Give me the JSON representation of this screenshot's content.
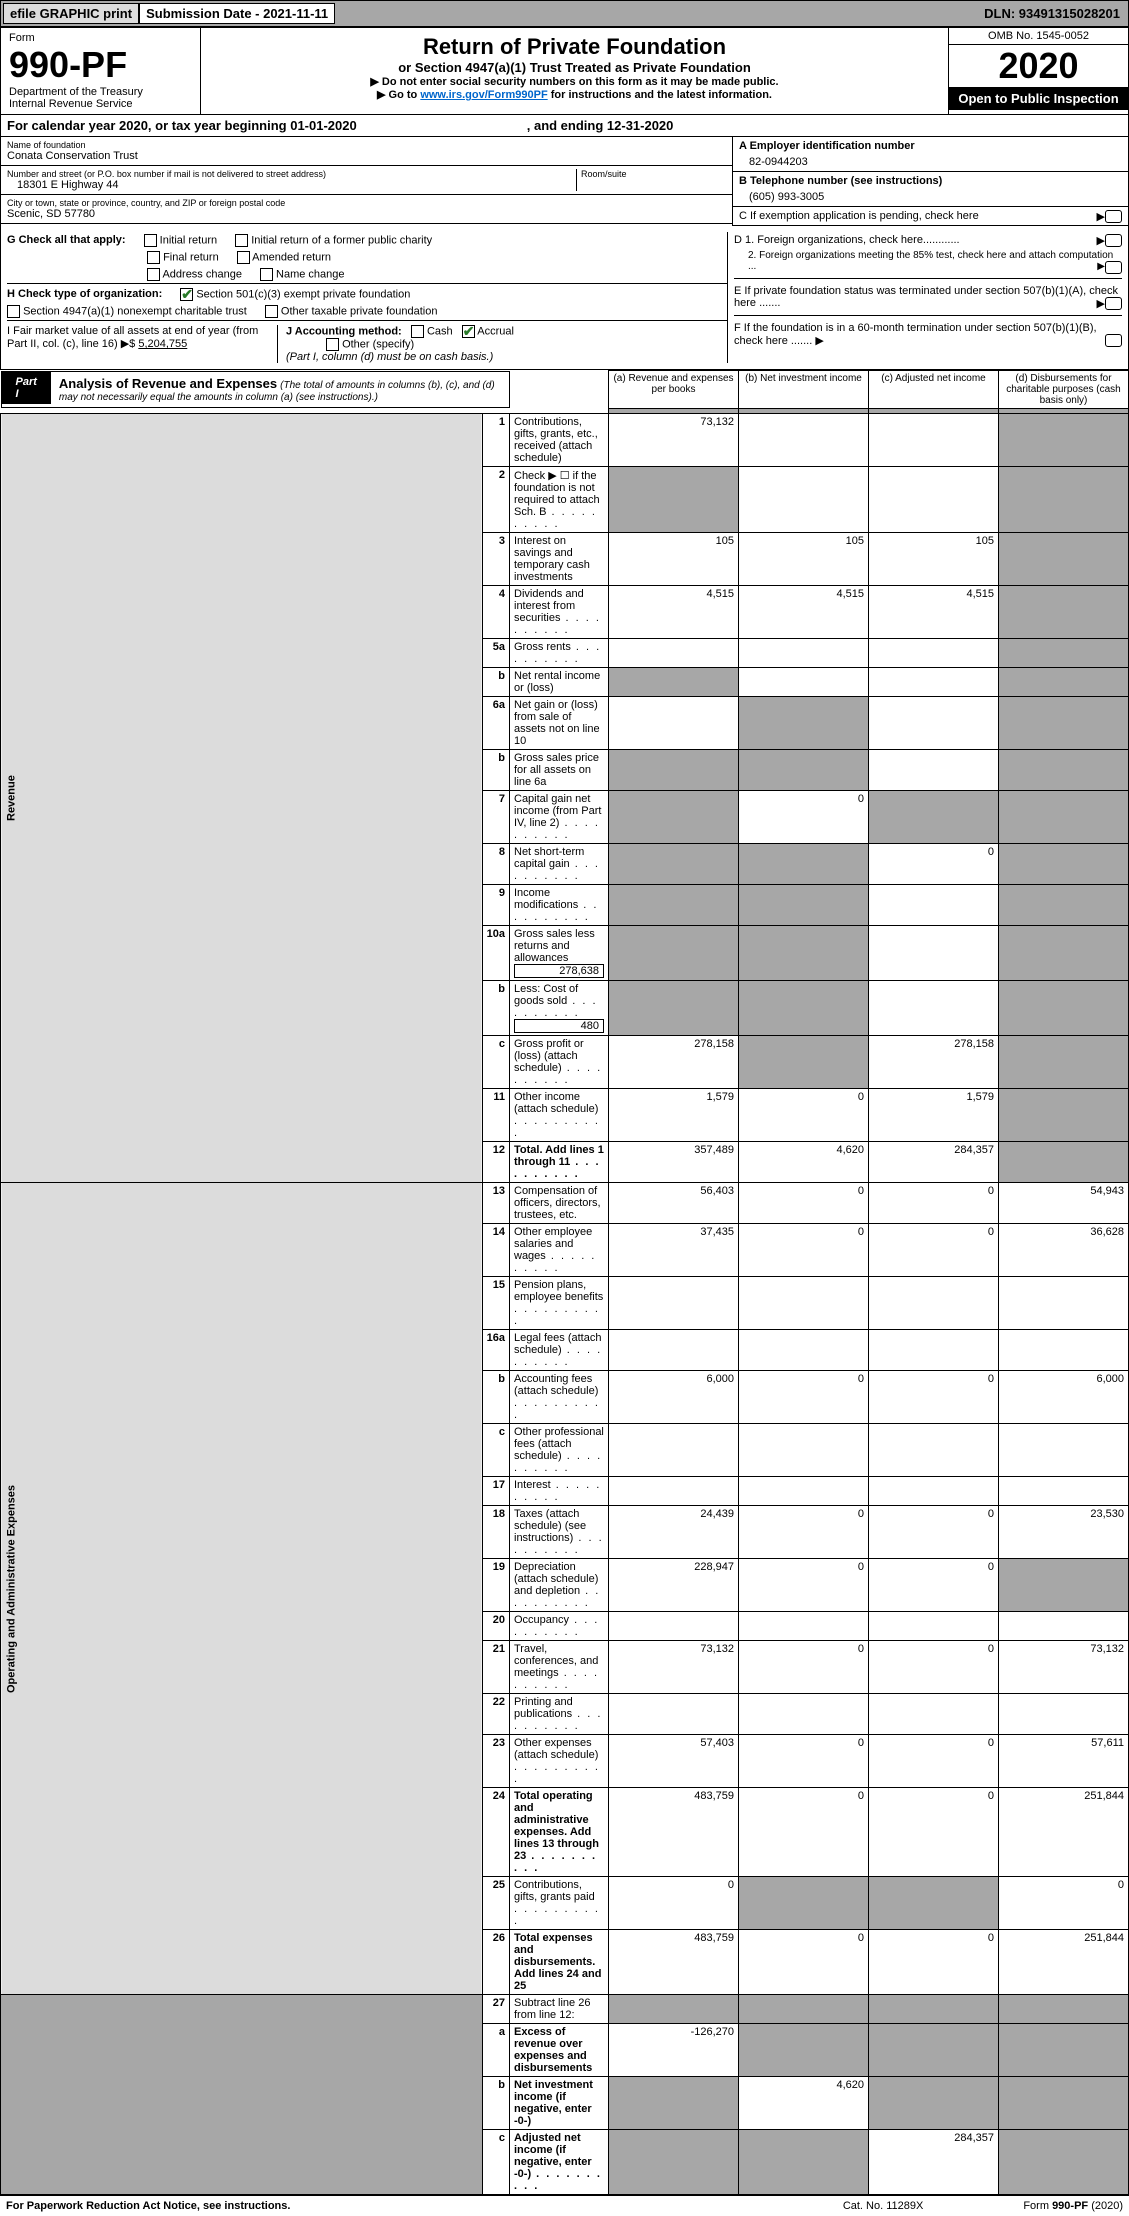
{
  "top": {
    "efile": "efile GRAPHIC print",
    "submission": "Submission Date - 2021-11-11",
    "dln": "DLN: 93491315028201"
  },
  "header": {
    "form_word": "Form",
    "form_num": "990-PF",
    "dept": "Department of the Treasury",
    "irs": "Internal Revenue Service",
    "title": "Return of Private Foundation",
    "subtitle": "or Section 4947(a)(1) Trust Treated as Private Foundation",
    "instr1": "▶ Do not enter social security numbers on this form as it may be made public.",
    "instr2_pre": "▶ Go to ",
    "instr2_link": "www.irs.gov/Form990PF",
    "instr2_post": " for instructions and the latest information.",
    "omb": "OMB No. 1545-0052",
    "year": "2020",
    "open_pub": "Open to Public Inspection"
  },
  "cal": {
    "text": "For calendar year 2020, or tax year beginning 01-01-2020",
    "end": ", and ending 12-31-2020"
  },
  "id": {
    "name_lbl": "Name of foundation",
    "name": "Conata Conservation Trust",
    "addr_lbl": "Number and street (or P.O. box number if mail is not delivered to street address)",
    "addr": "18301 E Highway 44",
    "room_lbl": "Room/suite",
    "city_lbl": "City or town, state or province, country, and ZIP or foreign postal code",
    "city": "Scenic, SD  57780",
    "ein_lbl": "A Employer identification number",
    "ein": "82-0944203",
    "phone_lbl": "B Telephone number (see instructions)",
    "phone": "(605) 993-3005",
    "c_lbl": "C If exemption application is pending, check here"
  },
  "checks": {
    "g": "G Check all that apply:",
    "g1": "Initial return",
    "g2": "Initial return of a former public charity",
    "g3": "Final return",
    "g4": "Amended return",
    "g5": "Address change",
    "g6": "Name change",
    "h": "H Check type of organization:",
    "h1": "Section 501(c)(3) exempt private foundation",
    "h2": "Section 4947(a)(1) nonexempt charitable trust",
    "h3": "Other taxable private foundation",
    "i": "I Fair market value of all assets at end of year (from Part II, col. (c), line 16) ▶$ ",
    "i_val": "5,204,755",
    "j": "J Accounting method:",
    "j1": "Cash",
    "j2": "Accrual",
    "j3": "Other (specify)",
    "j_note": "(Part I, column (d) must be on cash basis.)",
    "d1": "D 1. Foreign organizations, check here............",
    "d2": "2. Foreign organizations meeting the 85% test, check here and attach computation ...",
    "e": "E  If private foundation status was terminated under section 507(b)(1)(A), check here .......",
    "f": "F  If the foundation is in a 60-month termination under section 507(b)(1)(B), check here .......  ▶"
  },
  "part1": {
    "tab": "Part I",
    "title": "Analysis of Revenue and Expenses",
    "note": "(The total of amounts in columns (b), (c), and (d) may not necessarily equal the amounts in column (a) (see instructions).)",
    "cols": {
      "a": "(a) Revenue and expenses per books",
      "b": "(b) Net investment income",
      "c": "(c) Adjusted net income",
      "d": "(d) Disbursements for charitable purposes (cash basis only)"
    }
  },
  "sections": {
    "rev": "Revenue",
    "op": "Operating and Administrative Expenses"
  },
  "rows": [
    {
      "n": "1",
      "t": "Contributions, gifts, grants, etc., received (attach schedule)",
      "a": "73,132",
      "b": "",
      "c": "",
      "d": "",
      "dshade": true
    },
    {
      "n": "2",
      "t": "Check ▶ ☐ if the foundation is not required to attach Sch. B",
      "dots": true,
      "a": "",
      "b": "",
      "c": "",
      "d": "",
      "ashade": true,
      "dshade": true
    },
    {
      "n": "3",
      "t": "Interest on savings and temporary cash investments",
      "a": "105",
      "b": "105",
      "c": "105",
      "d": "",
      "dshade": true
    },
    {
      "n": "4",
      "t": "Dividends and interest from securities",
      "dots": true,
      "a": "4,515",
      "b": "4,515",
      "c": "4,515",
      "d": "",
      "dshade": true
    },
    {
      "n": "5a",
      "t": "Gross rents",
      "dots": true,
      "a": "",
      "b": "",
      "c": "",
      "d": "",
      "dshade": true
    },
    {
      "n": "b",
      "t": "Net rental income or (loss)",
      "inset": true,
      "a": "",
      "b": "",
      "c": "",
      "d": "",
      "ashade": true,
      "dshade": true
    },
    {
      "n": "6a",
      "t": "Net gain or (loss) from sale of assets not on line 10",
      "a": "",
      "b": "",
      "c": "",
      "d": "",
      "bshade": true,
      "dshade": true
    },
    {
      "n": "b",
      "t": "Gross sales price for all assets on line 6a",
      "inset": true,
      "a": "",
      "b": "",
      "c": "",
      "d": "",
      "ashade": true,
      "bshade": true,
      "dshade": true
    },
    {
      "n": "7",
      "t": "Capital gain net income (from Part IV, line 2)",
      "dots": true,
      "a": "",
      "b": "0",
      "c": "",
      "d": "",
      "ashade": true,
      "cshade": true,
      "dshade": true
    },
    {
      "n": "8",
      "t": "Net short-term capital gain",
      "dots": true,
      "a": "",
      "b": "",
      "c": "0",
      "d": "",
      "ashade": true,
      "bshade": true,
      "dshade": true
    },
    {
      "n": "9",
      "t": "Income modifications",
      "dots": true,
      "a": "",
      "b": "",
      "c": "",
      "d": "",
      "ashade": true,
      "bshade": true,
      "dshade": true
    },
    {
      "n": "10a",
      "t": "Gross sales less returns and allowances",
      "inset": true,
      "box": "278,638",
      "a": "",
      "b": "",
      "c": "",
      "d": "",
      "ashade": true,
      "bshade": true,
      "dshade": true
    },
    {
      "n": "b",
      "t": "Less: Cost of goods sold",
      "dots": true,
      "box": "480",
      "a": "",
      "b": "",
      "c": "",
      "d": "",
      "ashade": true,
      "bshade": true,
      "dshade": true
    },
    {
      "n": "c",
      "t": "Gross profit or (loss) (attach schedule)",
      "dots": true,
      "a": "278,158",
      "b": "",
      "c": "278,158",
      "d": "",
      "bshade": true,
      "dshade": true
    },
    {
      "n": "11",
      "t": "Other income (attach schedule)",
      "dots": true,
      "a": "1,579",
      "b": "0",
      "c": "1,579",
      "d": "",
      "dshade": true
    },
    {
      "n": "12",
      "t": "Total. Add lines 1 through 11",
      "dots": true,
      "bold": true,
      "a": "357,489",
      "b": "4,620",
      "c": "284,357",
      "d": "",
      "dshade": true
    },
    {
      "n": "13",
      "t": "Compensation of officers, directors, trustees, etc.",
      "a": "56,403",
      "b": "0",
      "c": "0",
      "d": "54,943",
      "sect": "op"
    },
    {
      "n": "14",
      "t": "Other employee salaries and wages",
      "dots": true,
      "a": "37,435",
      "b": "0",
      "c": "0",
      "d": "36,628"
    },
    {
      "n": "15",
      "t": "Pension plans, employee benefits",
      "dots": true,
      "a": "",
      "b": "",
      "c": "",
      "d": ""
    },
    {
      "n": "16a",
      "t": "Legal fees (attach schedule)",
      "dots": true,
      "a": "",
      "b": "",
      "c": "",
      "d": ""
    },
    {
      "n": "b",
      "t": "Accounting fees (attach schedule)",
      "dots": true,
      "a": "6,000",
      "b": "0",
      "c": "0",
      "d": "6,000"
    },
    {
      "n": "c",
      "t": "Other professional fees (attach schedule)",
      "dots": true,
      "a": "",
      "b": "",
      "c": "",
      "d": ""
    },
    {
      "n": "17",
      "t": "Interest",
      "dots": true,
      "a": "",
      "b": "",
      "c": "",
      "d": ""
    },
    {
      "n": "18",
      "t": "Taxes (attach schedule) (see instructions)",
      "dots": true,
      "a": "24,439",
      "b": "0",
      "c": "0",
      "d": "23,530"
    },
    {
      "n": "19",
      "t": "Depreciation (attach schedule) and depletion",
      "dots": true,
      "a": "228,947",
      "b": "0",
      "c": "0",
      "d": "",
      "dshade": true
    },
    {
      "n": "20",
      "t": "Occupancy",
      "dots": true,
      "a": "",
      "b": "",
      "c": "",
      "d": ""
    },
    {
      "n": "21",
      "t": "Travel, conferences, and meetings",
      "dots": true,
      "a": "73,132",
      "b": "0",
      "c": "0",
      "d": "73,132"
    },
    {
      "n": "22",
      "t": "Printing and publications",
      "dots": true,
      "a": "",
      "b": "",
      "c": "",
      "d": ""
    },
    {
      "n": "23",
      "t": "Other expenses (attach schedule)",
      "dots": true,
      "a": "57,403",
      "b": "0",
      "c": "0",
      "d": "57,611"
    },
    {
      "n": "24",
      "t": "Total operating and administrative expenses. Add lines 13 through 23",
      "dots": true,
      "bold": true,
      "a": "483,759",
      "b": "0",
      "c": "0",
      "d": "251,844"
    },
    {
      "n": "25",
      "t": "Contributions, gifts, grants paid",
      "dots": true,
      "a": "0",
      "b": "",
      "c": "",
      "d": "0",
      "bshade": true,
      "cshade": true
    },
    {
      "n": "26",
      "t": "Total expenses and disbursements. Add lines 24 and 25",
      "bold": true,
      "a": "483,759",
      "b": "0",
      "c": "0",
      "d": "251,844"
    },
    {
      "n": "27",
      "t": "Subtract line 26 from line 12:",
      "a": "",
      "b": "",
      "c": "",
      "d": "",
      "ashade": true,
      "bshade": true,
      "cshade": true,
      "dshade": true,
      "noside": true
    },
    {
      "n": "a",
      "t": "Excess of revenue over expenses and disbursements",
      "bold": true,
      "a": "-126,270",
      "b": "",
      "c": "",
      "d": "",
      "bshade": true,
      "cshade": true,
      "dshade": true,
      "noside": true
    },
    {
      "n": "b",
      "t": "Net investment income (if negative, enter -0-)",
      "bold": true,
      "a": "",
      "b": "4,620",
      "c": "",
      "d": "",
      "ashade": true,
      "cshade": true,
      "dshade": true,
      "noside": true
    },
    {
      "n": "c",
      "t": "Adjusted net income (if negative, enter -0-)",
      "dots": true,
      "bold": true,
      "a": "",
      "b": "",
      "c": "284,357",
      "d": "",
      "ashade": true,
      "bshade": true,
      "dshade": true,
      "noside": true
    }
  ],
  "foot": {
    "left": "For Paperwork Reduction Act Notice, see instructions.",
    "mid": "Cat. No. 11289X",
    "right": "Form 990-PF (2020)"
  }
}
